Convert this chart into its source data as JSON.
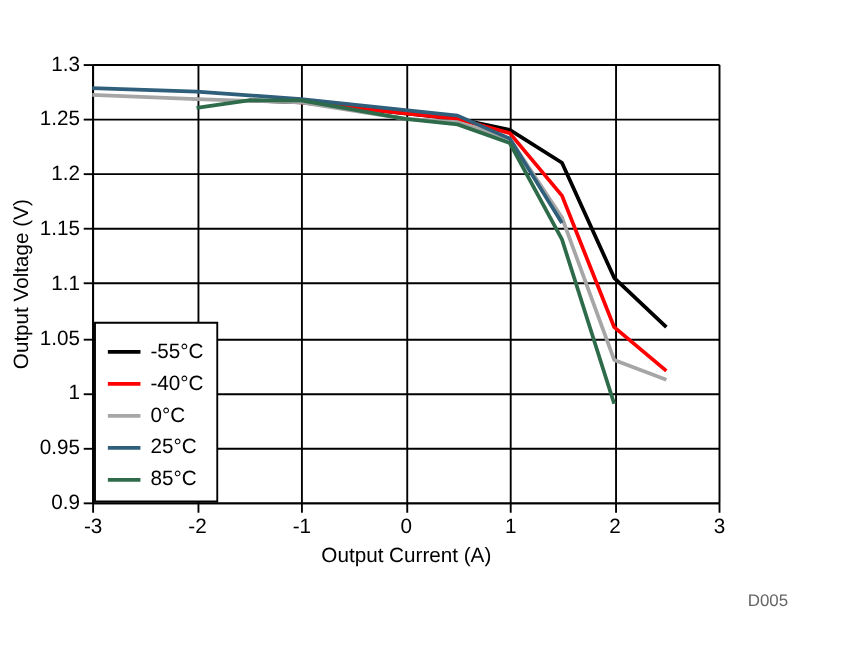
{
  "chart_data": {
    "type": "line",
    "xlabel": "Output Current (A)",
    "ylabel": "Output Voltage (V)",
    "xlim": [
      -3,
      3
    ],
    "xticks": [
      -3,
      -2,
      -1,
      0,
      1,
      2,
      3
    ],
    "ylim": [
      0.9,
      1.3
    ],
    "yticks": [
      0.9,
      0.95,
      1,
      1.05,
      1.1,
      1.15,
      1.2,
      1.25,
      1.3
    ],
    "grid": true,
    "legend": "bottom left",
    "line_style": "solid",
    "marker": "none",
    "annotations": [
      "D005"
    ],
    "series": [
      {
        "name": "-55°C",
        "color": "#000000",
        "x": [
          -1.5,
          -1,
          0,
          0.5,
          1,
          1.5,
          2,
          2.5
        ],
        "values": [
          1.267,
          1.265,
          1.255,
          1.25,
          1.24,
          1.21,
          1.105,
          1.06
        ]
      },
      {
        "name": "-40°C",
        "color": "#ff0000",
        "x": [
          -1,
          0,
          0.5,
          1,
          1.5,
          2,
          2.5
        ],
        "values": [
          1.265,
          1.255,
          1.25,
          1.237,
          1.18,
          1.06,
          1.02
        ]
      },
      {
        "name": "0°C",
        "color": "#a6a6a6",
        "x": [
          -3,
          -2,
          -1,
          0,
          0.5,
          1,
          1.5,
          2,
          2.5
        ],
        "values": [
          1.272,
          1.268,
          1.265,
          1.25,
          1.247,
          1.232,
          1.16,
          1.03,
          1.012
        ]
      },
      {
        "name": "25°C",
        "color": "#2f5f7a",
        "x": [
          -3,
          -2,
          -1,
          0,
          0.5,
          1,
          1.5
        ],
        "values": [
          1.278,
          1.275,
          1.268,
          1.258,
          1.253,
          1.232,
          1.155
        ]
      },
      {
        "name": "85°C",
        "color": "#2e6b4a",
        "x": [
          -2,
          -1.5,
          -1,
          0,
          0.5,
          1,
          1.5,
          2
        ],
        "values": [
          1.26,
          1.267,
          1.267,
          1.25,
          1.245,
          1.228,
          1.14,
          0.99
        ]
      }
    ]
  }
}
